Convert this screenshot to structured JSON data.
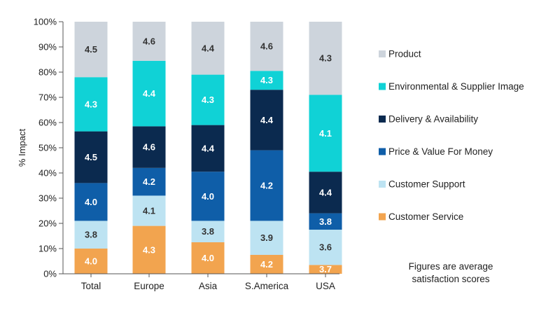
{
  "chart_data": {
    "type": "bar",
    "stacked": true,
    "ylabel": "% Impact",
    "xlabel": "",
    "ylim": [
      0,
      100
    ],
    "yticks": [
      "0%",
      "10%",
      "20%",
      "30%",
      "40%",
      "50%",
      "60%",
      "70%",
      "80%",
      "90%",
      "100%"
    ],
    "categories": [
      "Total",
      "Europe",
      "Asia",
      "S.America",
      "USA"
    ],
    "series": [
      {
        "name": "Customer Service",
        "color": "#f2a44f",
        "label_color": "#ffffff",
        "values": [
          10,
          19,
          12.5,
          7.5,
          3.5
        ],
        "scores": [
          "4.0",
          "4.3",
          "4.0",
          "4.2",
          "3.7"
        ]
      },
      {
        "name": "Customer Support",
        "color": "#bde3f2",
        "label_color": "#333333",
        "values": [
          11,
          12,
          8.5,
          13.5,
          14
        ],
        "scores": [
          "3.8",
          "4.1",
          "3.8",
          "3.9",
          "3.6"
        ]
      },
      {
        "name": "Price & Value For Money",
        "color": "#0f5ea8",
        "label_color": "#ffffff",
        "values": [
          15,
          11,
          19.5,
          28,
          6.5
        ],
        "scores": [
          "4.0",
          "4.2",
          "4.0",
          "4.2",
          "3.8"
        ]
      },
      {
        "name": "Delivery & Availability",
        "color": "#0b2a4f",
        "label_color": "#ffffff",
        "values": [
          20.5,
          16.5,
          18.5,
          24,
          16.5
        ],
        "scores": [
          "4.5",
          "4.6",
          "4.4",
          "4.4",
          "4.4"
        ]
      },
      {
        "name": "Environmental & Supplier Image",
        "color": "#10d2d6",
        "label_color": "#ffffff",
        "values": [
          21.5,
          26,
          20,
          7.5,
          30.5
        ],
        "scores": [
          "4.3",
          "4.4",
          "4.3",
          "4.3",
          "4.1"
        ]
      },
      {
        "name": "Product",
        "color": "#cdd4dc",
        "label_color": "#333333",
        "values": [
          22,
          15.5,
          21,
          19.5,
          29
        ],
        "scores": [
          "4.5",
          "4.6",
          "4.4",
          "4.6",
          "4.3"
        ]
      }
    ],
    "legend_order": [
      "Product",
      "Environmental & Supplier Image",
      "Delivery & Availability",
      "Price & Value For Money",
      "Customer Support",
      "Customer Service"
    ],
    "note": [
      "Figures are average",
      "satisfaction scores"
    ]
  }
}
